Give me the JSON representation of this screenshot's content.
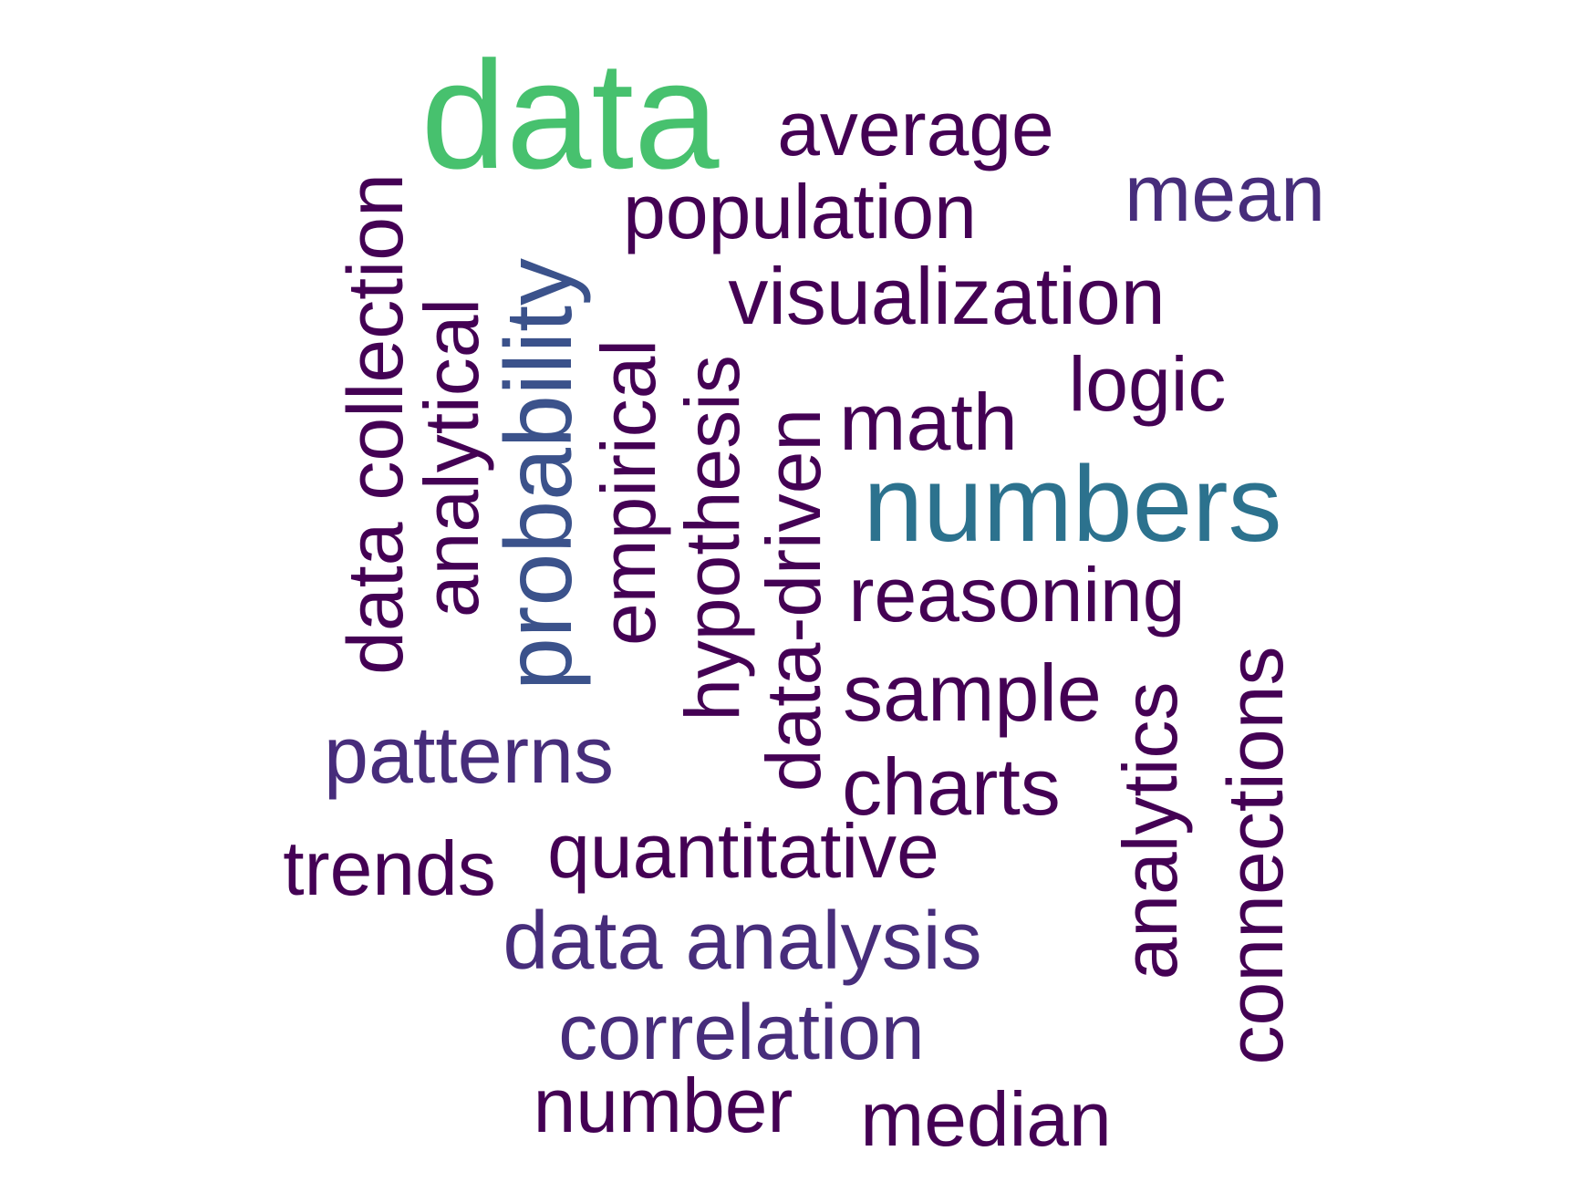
{
  "word_cloud": {
    "words": [
      {
        "text": "data",
        "color": "#47c16e"
      },
      {
        "text": "average",
        "color": "#440154"
      },
      {
        "text": "mean",
        "color": "#472d7b"
      },
      {
        "text": "population",
        "color": "#440154"
      },
      {
        "text": "visualization",
        "color": "#440154"
      },
      {
        "text": "logic",
        "color": "#440154"
      },
      {
        "text": "math",
        "color": "#440154"
      },
      {
        "text": "numbers",
        "color": "#2c728e"
      },
      {
        "text": "reasoning",
        "color": "#440154"
      },
      {
        "text": "sample",
        "color": "#440154"
      },
      {
        "text": "charts",
        "color": "#440154"
      },
      {
        "text": "patterns",
        "color": "#472d7b"
      },
      {
        "text": "trends",
        "color": "#440154"
      },
      {
        "text": "quantitative",
        "color": "#440154"
      },
      {
        "text": "data analysis",
        "color": "#472d7b"
      },
      {
        "text": "correlation",
        "color": "#472d7b"
      },
      {
        "text": "number",
        "color": "#440154"
      },
      {
        "text": "median",
        "color": "#440154"
      },
      {
        "text": "data collection",
        "color": "#440154"
      },
      {
        "text": "analytical",
        "color": "#440154"
      },
      {
        "text": "probability",
        "color": "#3b528b"
      },
      {
        "text": "empirical",
        "color": "#440154"
      },
      {
        "text": "hypothesis",
        "color": "#440154"
      },
      {
        "text": "data-driven",
        "color": "#440154"
      },
      {
        "text": "analytics",
        "color": "#440154"
      },
      {
        "text": "connections",
        "color": "#440154"
      }
    ]
  }
}
